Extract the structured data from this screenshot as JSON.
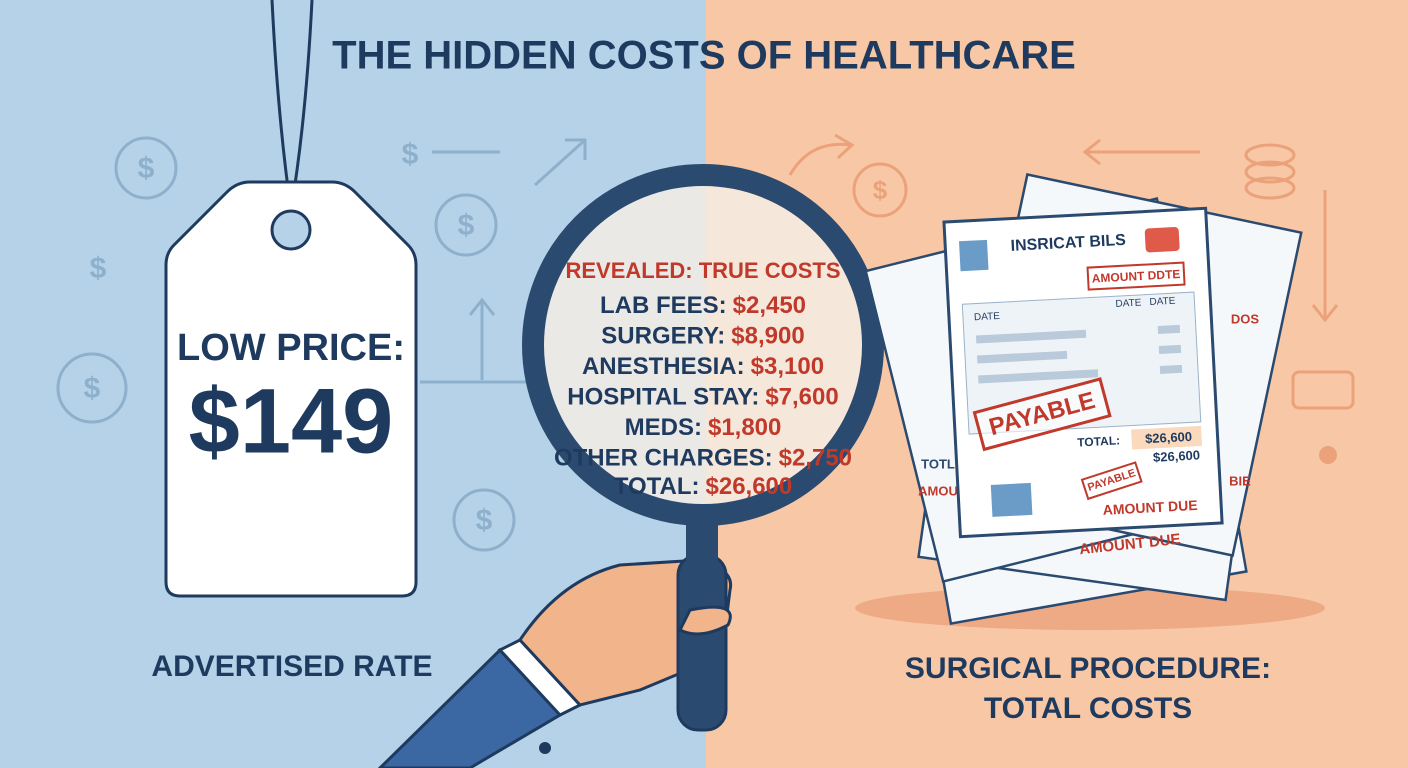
{
  "title": "THE HIDDEN COSTS OF HEALTHCARE",
  "price_tag": {
    "heading": "LOW PRICE:",
    "price": "$149",
    "caption": "ADVERTISED RATE"
  },
  "magnifier": {
    "heading": "REVEALED: TRUE COSTS",
    "items": [
      {
        "label": "LAB FEES:",
        "amount": "$2,450"
      },
      {
        "label": "SURGERY:",
        "amount": "$8,900"
      },
      {
        "label": "ANESTHESIA:",
        "amount": "$3,100"
      },
      {
        "label": "HOSPITAL STAY:",
        "amount": "$7,600"
      },
      {
        "label": "MEDS:",
        "amount": "$1,800"
      },
      {
        "label": "OTHER CHARGES:",
        "amount": "$2,750"
      }
    ],
    "total": {
      "label": "TOTAL:",
      "amount": "$26,600"
    }
  },
  "bills": {
    "title": "INSRICAT BILS",
    "stamp_top": "AMOUNT DDTE",
    "date_labels": [
      "DATE",
      "DATE",
      "DATE"
    ],
    "stamp": "PAYABLE",
    "total_label": "TOTAL:",
    "total_amount": "$26,600",
    "second_amount": "$26,600",
    "small_stamp": "PAYABLE",
    "amount_due": "AMOUNT DUE",
    "back_amount_due": "AMOUNT DUE",
    "back_dos": "DOS",
    "back_totl": "TOTL",
    "back_amou": "AMOU",
    "back_bie": "BIE"
  },
  "right_caption": [
    "SURGICAL PROCEDURE:",
    "TOTAL COSTS"
  ],
  "decor": {
    "currency_symbol": "$"
  }
}
